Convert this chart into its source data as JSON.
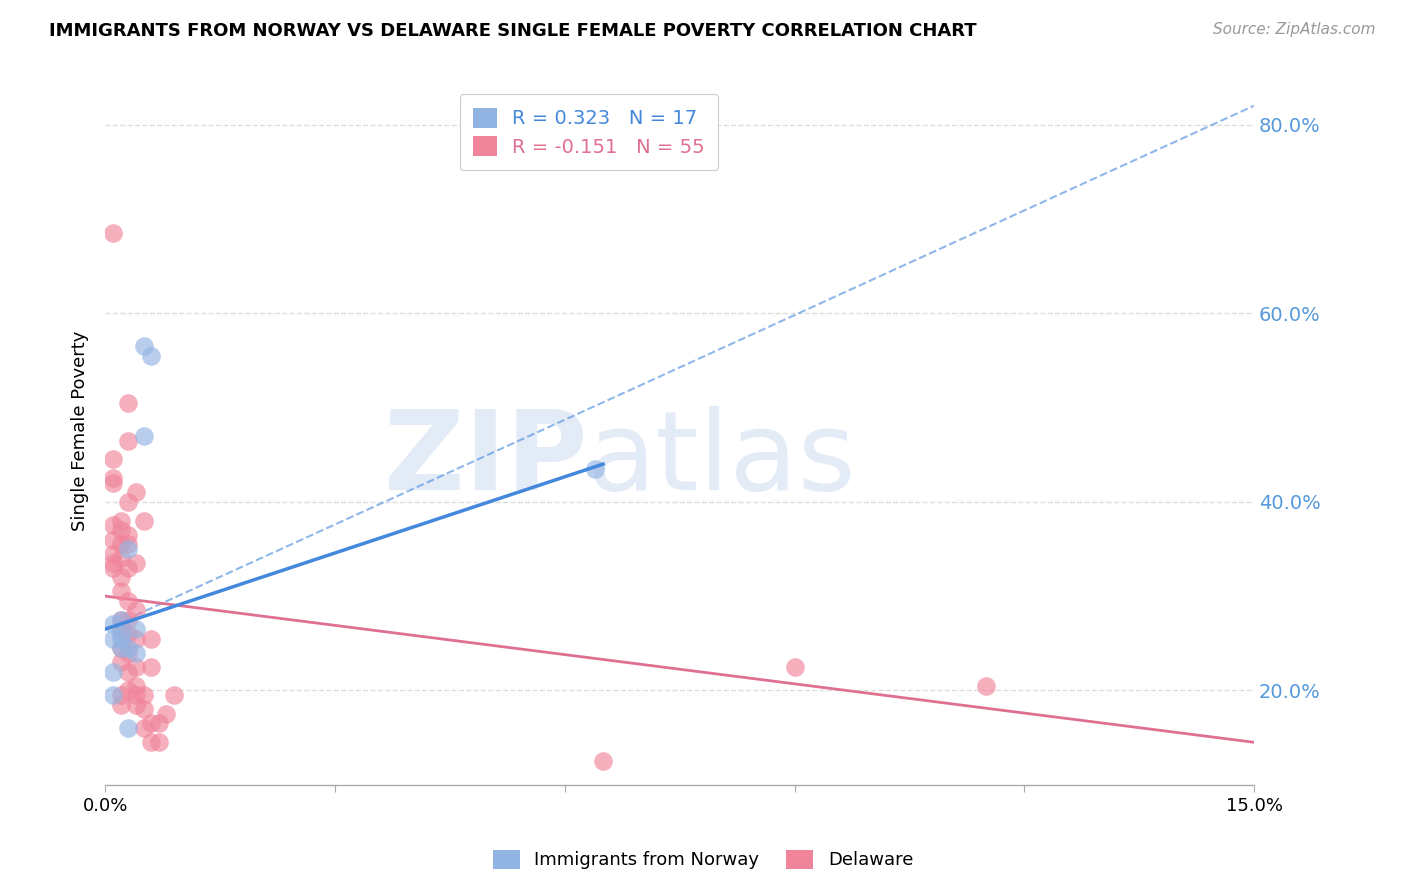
{
  "title": "IMMIGRANTS FROM NORWAY VS DELAWARE SINGLE FEMALE POVERTY CORRELATION CHART",
  "source": "Source: ZipAtlas.com",
  "ylabel": "Single Female Poverty",
  "xmin": 0.0,
  "xmax": 0.15,
  "ymin": 0.1,
  "ymax": 0.85,
  "yticks": [
    0.2,
    0.4,
    0.6,
    0.8
  ],
  "ytick_labels": [
    "20.0%",
    "40.0%",
    "60.0%",
    "80.0%"
  ],
  "xticks": [
    0.0,
    0.03,
    0.06,
    0.09,
    0.12,
    0.15
  ],
  "xtick_labels": [
    "0.0%",
    "",
    "",
    "",
    "",
    "15.0%"
  ],
  "legend_norway": "R = 0.323   N = 17",
  "legend_delaware": "R = -0.151   N = 55",
  "legend_label_norway": "Immigrants from Norway",
  "legend_label_delaware": "Delaware",
  "norway_color": "#92b4e3",
  "delaware_color": "#f0849a",
  "norway_line_color": "#4488dd",
  "delaware_line_color": "#e07090",
  "norway_line_solid_x0": 0.0,
  "norway_line_solid_y0": 0.265,
  "norway_line_solid_x1": 0.065,
  "norway_line_solid_y1": 0.44,
  "norway_line_dash_x1": 0.15,
  "norway_line_dash_y1": 0.82,
  "delaware_line_x0": 0.0,
  "delaware_line_y0": 0.3,
  "delaware_line_x1": 0.15,
  "delaware_line_y1": 0.145,
  "norway_dots": [
    [
      0.001,
      0.195
    ],
    [
      0.001,
      0.22
    ],
    [
      0.001,
      0.255
    ],
    [
      0.001,
      0.27
    ],
    [
      0.002,
      0.255
    ],
    [
      0.002,
      0.26
    ],
    [
      0.002,
      0.275
    ],
    [
      0.002,
      0.245
    ],
    [
      0.003,
      0.35
    ],
    [
      0.003,
      0.245
    ],
    [
      0.003,
      0.16
    ],
    [
      0.004,
      0.265
    ],
    [
      0.004,
      0.24
    ],
    [
      0.005,
      0.47
    ],
    [
      0.005,
      0.565
    ],
    [
      0.006,
      0.555
    ],
    [
      0.064,
      0.435
    ]
  ],
  "delaware_dots": [
    [
      0.001,
      0.33
    ],
    [
      0.001,
      0.345
    ],
    [
      0.001,
      0.335
    ],
    [
      0.001,
      0.375
    ],
    [
      0.001,
      0.36
    ],
    [
      0.001,
      0.42
    ],
    [
      0.001,
      0.425
    ],
    [
      0.001,
      0.445
    ],
    [
      0.001,
      0.685
    ],
    [
      0.002,
      0.185
    ],
    [
      0.002,
      0.195
    ],
    [
      0.002,
      0.23
    ],
    [
      0.002,
      0.245
    ],
    [
      0.002,
      0.265
    ],
    [
      0.002,
      0.275
    ],
    [
      0.002,
      0.305
    ],
    [
      0.002,
      0.32
    ],
    [
      0.002,
      0.34
    ],
    [
      0.002,
      0.355
    ],
    [
      0.002,
      0.37
    ],
    [
      0.002,
      0.38
    ],
    [
      0.003,
      0.2
    ],
    [
      0.003,
      0.22
    ],
    [
      0.003,
      0.24
    ],
    [
      0.003,
      0.26
    ],
    [
      0.003,
      0.275
    ],
    [
      0.003,
      0.295
    ],
    [
      0.003,
      0.33
    ],
    [
      0.003,
      0.355
    ],
    [
      0.003,
      0.365
    ],
    [
      0.003,
      0.4
    ],
    [
      0.003,
      0.465
    ],
    [
      0.003,
      0.505
    ],
    [
      0.004,
      0.185
    ],
    [
      0.004,
      0.195
    ],
    [
      0.004,
      0.205
    ],
    [
      0.004,
      0.225
    ],
    [
      0.004,
      0.255
    ],
    [
      0.004,
      0.285
    ],
    [
      0.004,
      0.335
    ],
    [
      0.004,
      0.41
    ],
    [
      0.005,
      0.16
    ],
    [
      0.005,
      0.18
    ],
    [
      0.005,
      0.195
    ],
    [
      0.005,
      0.38
    ],
    [
      0.006,
      0.145
    ],
    [
      0.006,
      0.165
    ],
    [
      0.006,
      0.225
    ],
    [
      0.006,
      0.255
    ],
    [
      0.007,
      0.145
    ],
    [
      0.007,
      0.165
    ],
    [
      0.008,
      0.175
    ],
    [
      0.009,
      0.195
    ],
    [
      0.065,
      0.125
    ],
    [
      0.09,
      0.225
    ],
    [
      0.115,
      0.205
    ]
  ],
  "watermark_zip": "ZIP",
  "watermark_atlas": "atlas",
  "background_color": "#ffffff",
  "grid_color": "#dddddd"
}
